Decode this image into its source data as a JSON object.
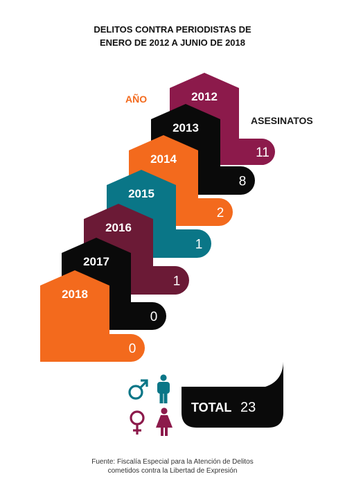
{
  "title_lines": [
    "DELITOS CONTRA PERIODISTAS DE",
    "ENERO DE 2012 A JUNIO DE 2018"
  ],
  "year_header": "AÑO",
  "value_header": "ASESINATOS",
  "chart_data": {
    "type": "bar",
    "title": "DELITOS CONTRA PERIODISTAS DE ENERO DE 2012 A JUNIO DE 2018",
    "xlabel": "AÑO",
    "ylabel": "ASESINATOS",
    "categories": [
      "2012",
      "2013",
      "2014",
      "2015",
      "2016",
      "2017",
      "2018"
    ],
    "values": [
      11,
      8,
      2,
      1,
      1,
      0,
      0
    ],
    "colors": [
      "#8C1A4B",
      "#0A0A0A",
      "#F36A1D",
      "#0A7687",
      "#6B1A36",
      "#0A0A0A",
      "#F36A1D"
    ]
  },
  "total": {
    "label": "TOTAL",
    "value": "23"
  },
  "icons": [
    "male-symbol-icon",
    "man-figure-icon",
    "female-symbol-icon",
    "woman-figure-icon"
  ],
  "icon_colors": {
    "male": "#0A7687",
    "female": "#8C1A4B"
  },
  "source_lines": [
    "Fuente: Fiscalía Especial para la Atención de Delitos",
    "cometidos contra la Libertad de Expresión"
  ]
}
